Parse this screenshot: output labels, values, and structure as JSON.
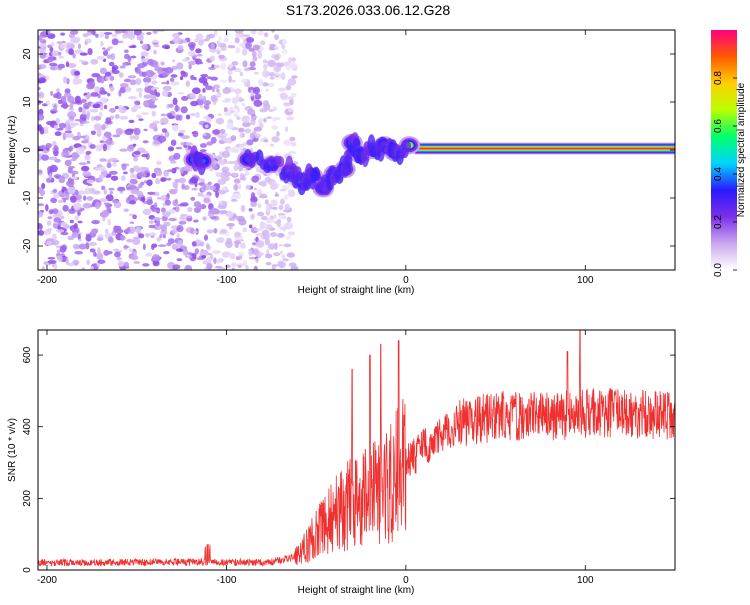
{
  "title": "S173.2026.033.06.12.G28",
  "chart_data": [
    {
      "type": "heatmap",
      "xlabel": "Height of straight line (km)",
      "ylabel": "Frequency (Hz)",
      "xlim": [
        -205,
        150
      ],
      "ylim": [
        -25,
        25
      ],
      "xticks": [
        -200,
        -100,
        0,
        100
      ],
      "yticks": [
        -20,
        -10,
        0,
        10,
        20
      ],
      "colorbar": {
        "label": "Normalized spectral amplitude",
        "range": [
          0,
          1
        ],
        "ticks": [
          "0.0",
          "0.2",
          "0.4",
          "0.6",
          "0.8"
        ],
        "colors": [
          "#ffffff",
          "#c9a8f0",
          "#7b2fe8",
          "#2a1aff",
          "#00d5ff",
          "#00ff6a",
          "#b8ff00",
          "#ffd000",
          "#ff5a00",
          "#ff0080"
        ]
      },
      "tone_line": {
        "frequency": 0.3,
        "x_start": 5,
        "x_end": 150,
        "amplitude": 0.95
      },
      "features": [
        {
          "x": -118,
          "y": -2.0,
          "amplitude": 0.45
        },
        {
          "x": -113,
          "y": -2.3,
          "amplitude": 0.4
        },
        {
          "x": -88,
          "y": -2.0,
          "amplitude": 0.4
        },
        {
          "x": -75,
          "y": -3.0,
          "amplitude": 0.45
        },
        {
          "x": -65,
          "y": -4.5,
          "amplitude": 0.5
        },
        {
          "x": -58,
          "y": -6.5,
          "amplitude": 0.55
        },
        {
          "x": -52,
          "y": -5.5,
          "amplitude": 0.5
        },
        {
          "x": -46,
          "y": -8.0,
          "amplitude": 0.45
        },
        {
          "x": -40,
          "y": -5.0,
          "amplitude": 0.5
        },
        {
          "x": -34,
          "y": -4.0,
          "amplitude": 0.5
        },
        {
          "x": -30,
          "y": 1.5,
          "amplitude": 0.55
        },
        {
          "x": -25,
          "y": -1.0,
          "amplitude": 0.55
        },
        {
          "x": -18,
          "y": 0.0,
          "amplitude": 0.6
        },
        {
          "x": -12,
          "y": 1.0,
          "amplitude": 0.6
        },
        {
          "x": -6,
          "y": -0.5,
          "amplitude": 0.6
        },
        {
          "x": 2,
          "y": 1.0,
          "amplitude": 0.75
        }
      ]
    },
    {
      "type": "line",
      "xlabel": "Height of straight line (km)",
      "ylabel": "SNR (10 * v/v)",
      "xlim": [
        -205,
        150
      ],
      "ylim": [
        0,
        670
      ],
      "xticks": [
        -200,
        -100,
        0,
        100
      ],
      "yticks": [
        0,
        200,
        400,
        600
      ],
      "color": "#f03030",
      "trend": [
        {
          "x": -205,
          "y": 20
        },
        {
          "x": -120,
          "y": 22
        },
        {
          "x": -75,
          "y": 22
        },
        {
          "x": -60,
          "y": 40
        },
        {
          "x": -50,
          "y": 100
        },
        {
          "x": -40,
          "y": 150
        },
        {
          "x": -30,
          "y": 190
        },
        {
          "x": -20,
          "y": 210
        },
        {
          "x": -10,
          "y": 230
        },
        {
          "x": 0,
          "y": 300
        },
        {
          "x": 15,
          "y": 360
        },
        {
          "x": 30,
          "y": 410
        },
        {
          "x": 50,
          "y": 430
        },
        {
          "x": 80,
          "y": 430
        },
        {
          "x": 110,
          "y": 440
        },
        {
          "x": 150,
          "y": 430
        }
      ],
      "spikes": [
        {
          "x": -30,
          "y": 560
        },
        {
          "x": -20,
          "y": 600
        },
        {
          "x": -14,
          "y": 630
        },
        {
          "x": -4,
          "y": 640
        },
        {
          "x": 97,
          "y": 670
        },
        {
          "x": 90,
          "y": 610
        }
      ]
    }
  ]
}
